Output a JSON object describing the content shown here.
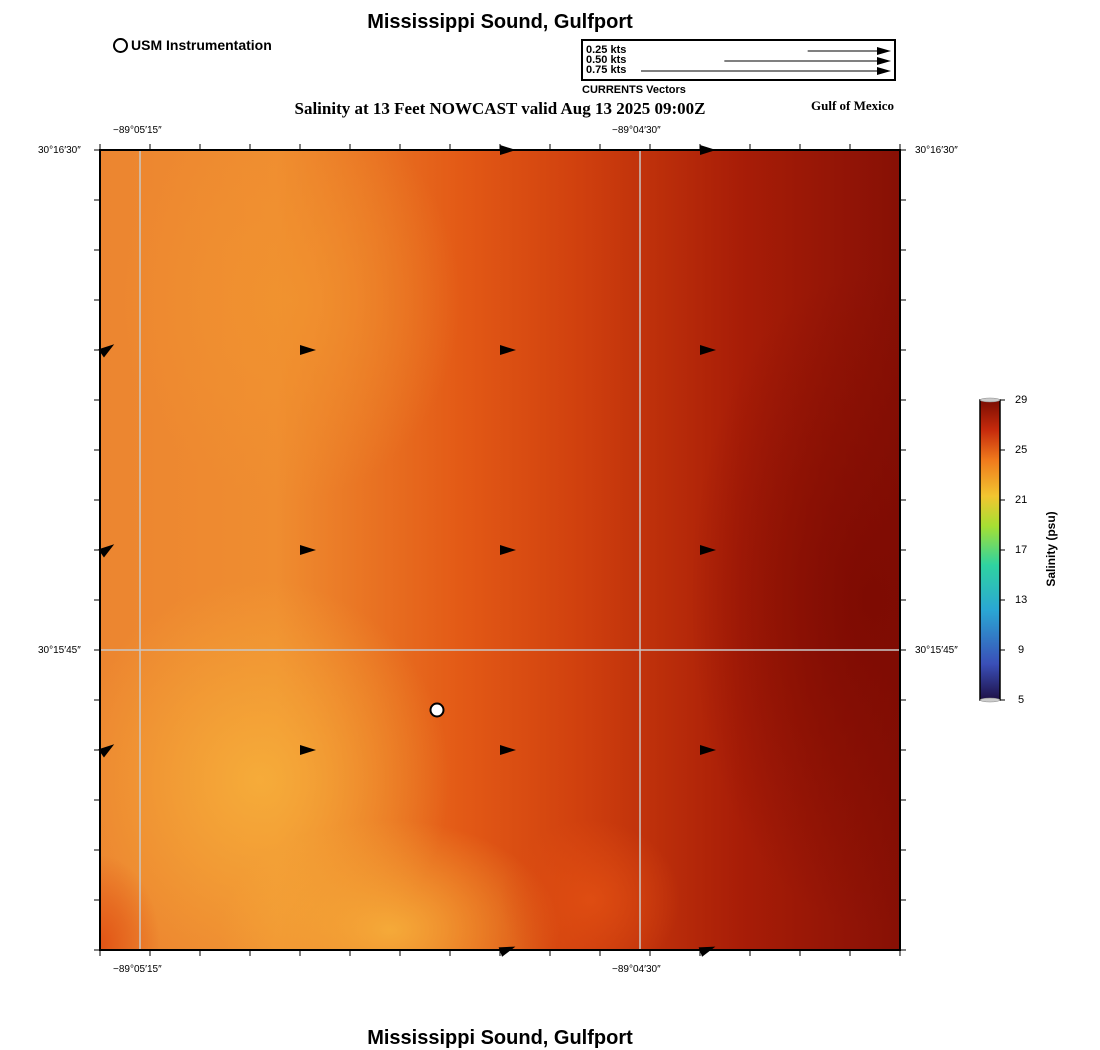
{
  "title": "Mississippi Sound, Gulfport",
  "subtitle": "Salinity at 13 Feet NOWCAST valid Aug 13 2025 09:00Z",
  "region_label": "Gulf of Mexico",
  "footer_title": "Mississippi Sound, Gulfport",
  "legend": {
    "usm_label": "USM Instrumentation"
  },
  "vector_legend": {
    "caption": "CURRENTS Vectors",
    "entries": [
      {
        "label": "0.25 kts",
        "speed": 0.25
      },
      {
        "label": "0.50 kts",
        "speed": 0.5
      },
      {
        "label": "0.75 kts",
        "speed": 0.75
      }
    ]
  },
  "axes": {
    "top_lon": [
      "−89°05′15″",
      "−89°04′30″"
    ],
    "bottom_lon": [
      "−89°05′15″",
      "−89°04′30″"
    ],
    "left_lat": [
      "30°16′30″",
      "30°15′45″"
    ],
    "right_lat": [
      "30°16′30″",
      "30°15′45″"
    ]
  },
  "colorbar": {
    "title": "Salinity (psu)",
    "ticks": [
      "29",
      "25",
      "21",
      "17",
      "13",
      "9",
      "5"
    ],
    "min": 5,
    "max": 29,
    "colors": [
      "#1e1046",
      "#3a4fb8",
      "#2aa7d4",
      "#2fd3a0",
      "#a6e033",
      "#f2c530",
      "#f07a1c",
      "#c62a0c",
      "#7a0c02"
    ]
  },
  "colors": {
    "field_light": "#f5a93a",
    "field_mid": "#e8602a",
    "field_dark": "#8c1205",
    "grid": "#c8c8c8"
  }
}
